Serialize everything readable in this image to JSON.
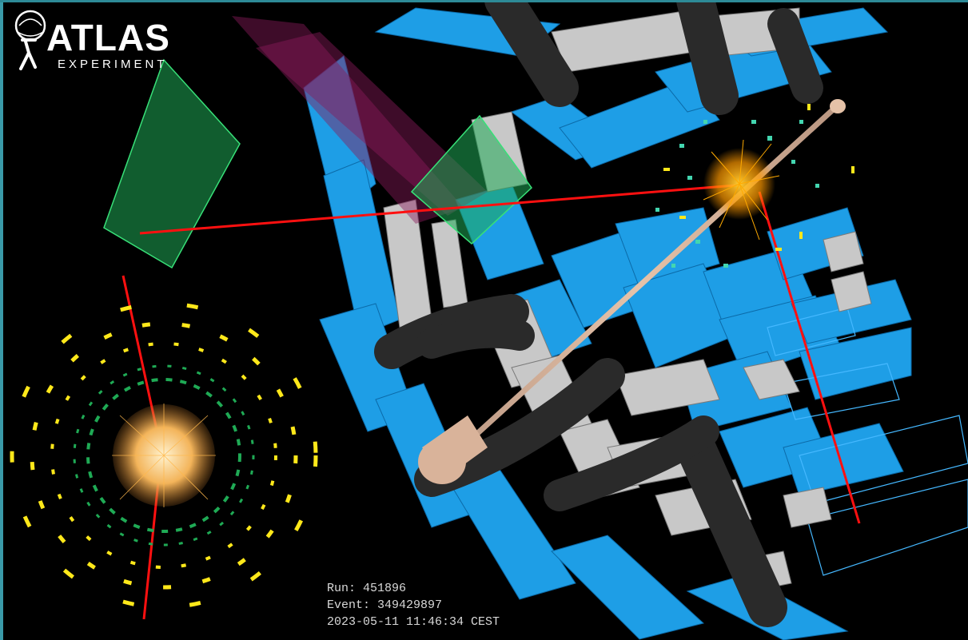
{
  "logo": {
    "main": "ATLAS",
    "sub": "EXPERIMENT"
  },
  "event_info": {
    "run": "Run: 451896",
    "event": "Event: 349429897",
    "timestamp": "2023-05-11 11:46:34 CEST"
  },
  "colors": {
    "background": "#000000",
    "muon_chamber": "#1e9ee6",
    "support_structure": "#c8c8c8",
    "toroid_coil": "#2a2a2a",
    "beam_pipe": "#d9b39a",
    "electron_track": "#ff1010",
    "jet_energy": "#ffaa00",
    "calorimeter_green": "#1faa55",
    "calorimeter_yellow": "#ffe81a"
  }
}
